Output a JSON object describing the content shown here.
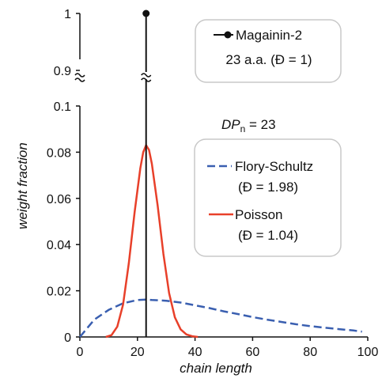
{
  "chart_data": {
    "type": "line",
    "xlabel": "chain length",
    "ylabel": "weight fraction",
    "xlim": [
      0,
      100
    ],
    "ylim_lower": [
      0,
      0.1
    ],
    "ylim_upper": [
      0.9,
      1
    ],
    "axis_break": "between 0.1 and 0.9 (marked with ≈)",
    "x_ticks": [
      "0",
      "20",
      "40",
      "60",
      "80",
      "100"
    ],
    "y_ticks_lower": [
      "0",
      "0.02",
      "0.04",
      "0.06",
      "0.08",
      "0.1"
    ],
    "y_ticks_upper": [
      "0.9",
      "1"
    ],
    "grid": false,
    "series": [
      {
        "name": "Flory-Schultz",
        "note": "(Đ = 1.98)",
        "style": "dashed",
        "color": "#3a5fb0",
        "x": [
          0,
          5,
          10,
          15,
          20,
          23,
          25,
          30,
          35,
          40,
          45,
          50,
          55,
          60,
          65,
          70,
          75,
          80,
          85,
          90,
          95,
          98
        ],
        "y": [
          0,
          0.0075,
          0.0117,
          0.0146,
          0.016,
          0.0162,
          0.016,
          0.0157,
          0.0149,
          0.0137,
          0.0125,
          0.0111,
          0.0099,
          0.0086,
          0.0075,
          0.0065,
          0.0055,
          0.0047,
          0.004,
          0.0034,
          0.0028,
          0.0023
        ]
      },
      {
        "name": "Poisson",
        "note": "(Đ = 1.04)",
        "style": "solid",
        "color": "#e8402a",
        "x": [
          9,
          11,
          13,
          15,
          17,
          19,
          21,
          22,
          23,
          24,
          25,
          27,
          29,
          31,
          33,
          35,
          37,
          39,
          41
        ],
        "y": [
          0,
          0.0008,
          0.0045,
          0.014,
          0.032,
          0.054,
          0.073,
          0.08,
          0.083,
          0.081,
          0.075,
          0.057,
          0.036,
          0.019,
          0.0085,
          0.0033,
          0.0011,
          0.0003,
          0
        ]
      },
      {
        "name": "Magainin-2",
        "note": "23 a.a. (Đ = 1)",
        "style": "stem",
        "color": "#111111",
        "x": [
          23
        ],
        "y": [
          1
        ]
      }
    ],
    "annotations": [
      {
        "text_main": "DP",
        "text_sub": "n",
        "text_rest": " = 23"
      }
    ]
  }
}
